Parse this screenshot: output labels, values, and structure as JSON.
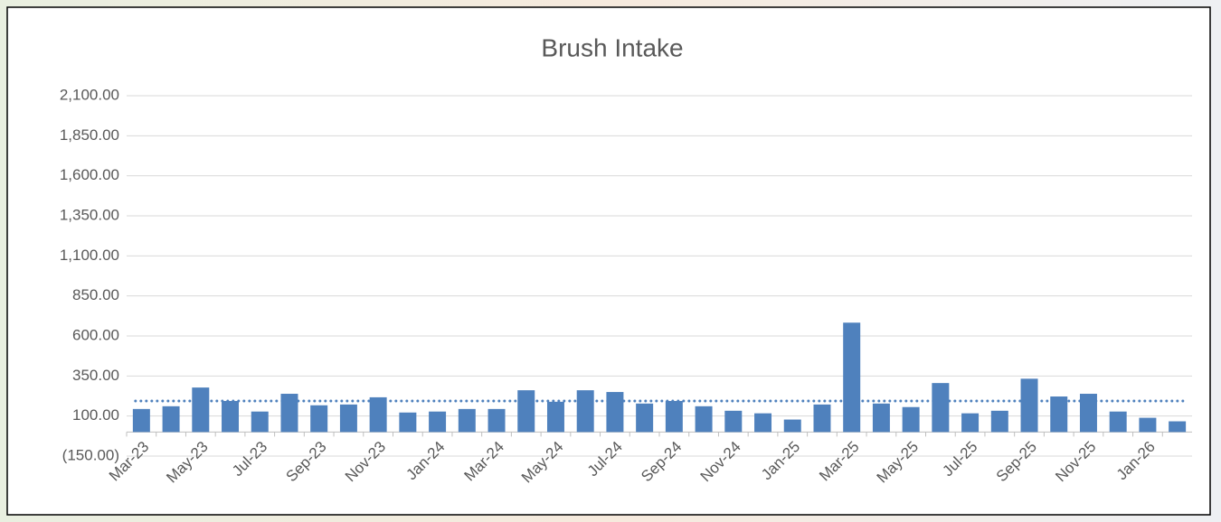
{
  "chart_data": {
    "type": "bar",
    "title": "Brush Intake",
    "categories": [
      "Mar-23",
      null,
      "May-23",
      null,
      "Jul-23",
      null,
      "Sep-23",
      null,
      "Nov-23",
      null,
      "Jan-24",
      null,
      "Mar-24",
      null,
      "May-24",
      null,
      "Jul-24",
      null,
      "Sep-24",
      null,
      "Nov-24",
      null,
      "Jan-25",
      null,
      "Mar-25",
      null,
      "May-25",
      null,
      "Jul-25",
      null,
      "Sep-25",
      null,
      "Nov-25",
      null,
      "Jan-26",
      null
    ],
    "values": [
      144,
      161,
      278,
      194,
      128,
      239,
      167,
      172,
      217,
      122,
      128,
      144,
      144,
      261,
      189,
      261,
      250,
      178,
      194,
      161,
      133,
      117,
      78,
      172,
      683,
      178,
      156,
      306,
      117,
      133,
      333,
      222,
      239,
      128,
      89,
      67
    ],
    "color": "#4f81bd",
    "reference_line": 194,
    "ylim": [
      -150,
      2100
    ],
    "yticks": [
      {
        "value": -150,
        "label": "(150.00)"
      },
      {
        "value": 100,
        "label": "100.00"
      },
      {
        "value": 350,
        "label": "350.00"
      },
      {
        "value": 600,
        "label": "600.00"
      },
      {
        "value": 850,
        "label": "850.00"
      },
      {
        "value": 1100,
        "label": "1,100.00"
      },
      {
        "value": 1350,
        "label": "1,350.00"
      },
      {
        "value": 1600,
        "label": "1,600.00"
      },
      {
        "value": 1850,
        "label": "1,850.00"
      },
      {
        "value": 2100,
        "label": "2,100.00"
      }
    ],
    "grid": true
  }
}
